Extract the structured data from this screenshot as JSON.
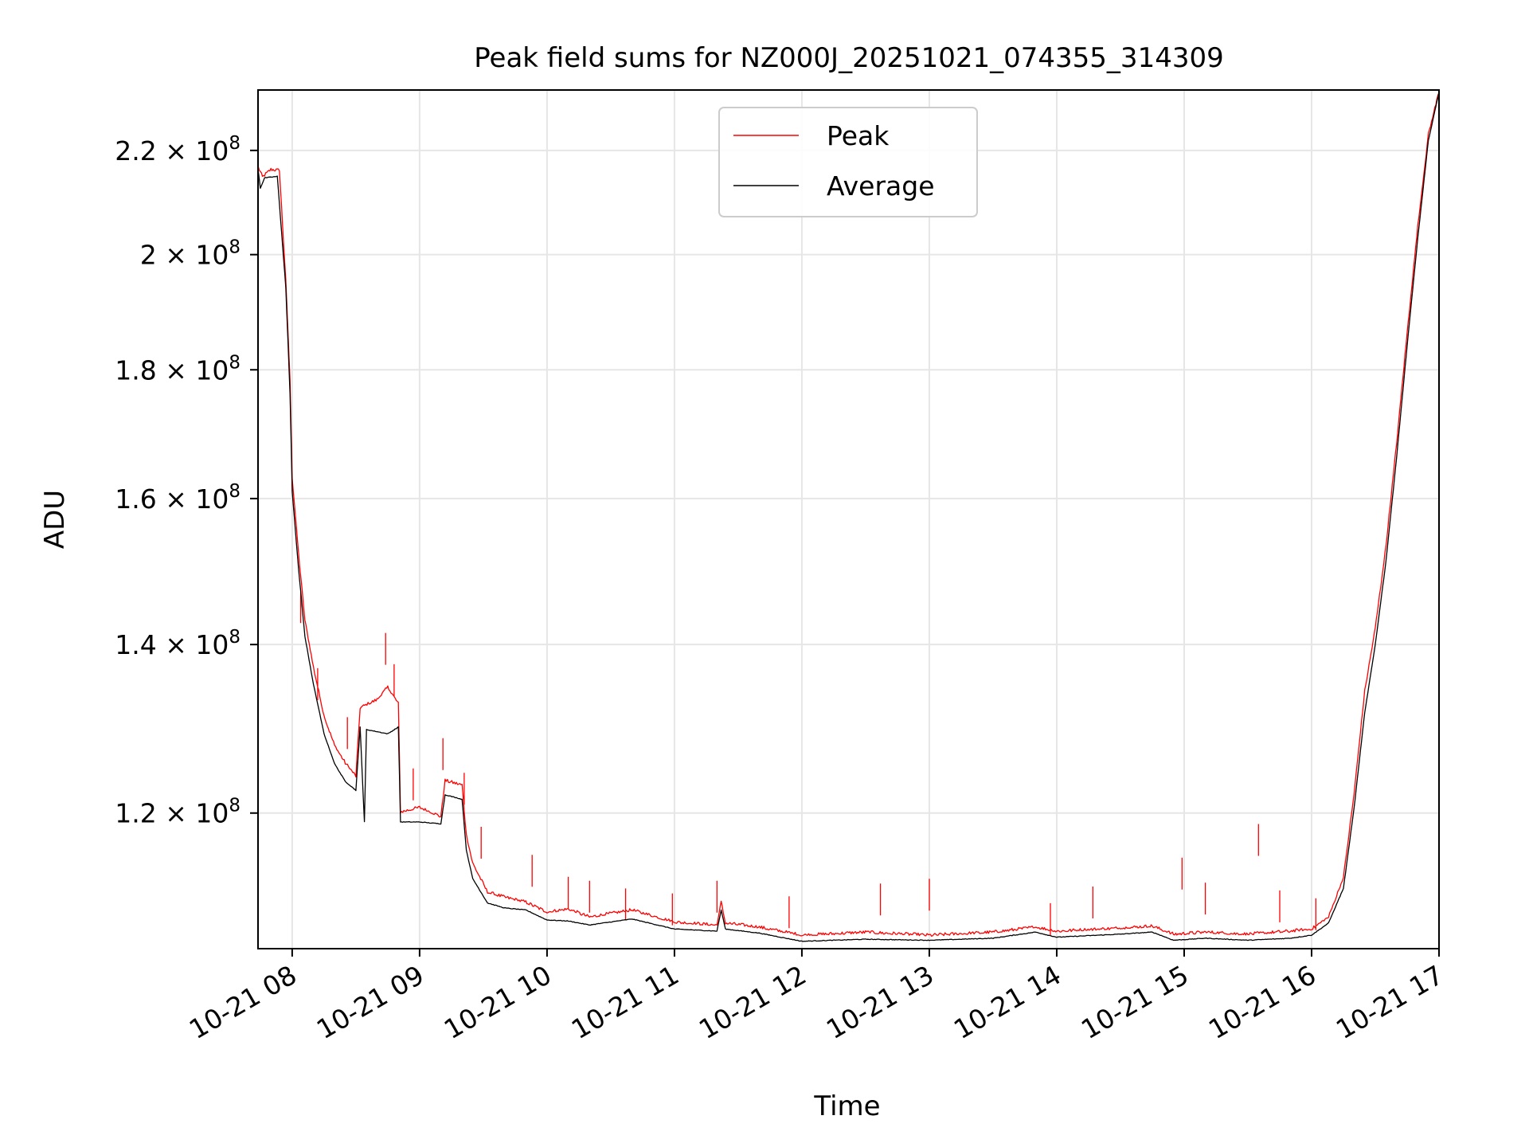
{
  "chart_data": {
    "type": "line",
    "title": "Peak field sums for NZ000J_20251021_074355_314309",
    "xlabel": "Time",
    "ylabel": "ADU",
    "yscale": "log",
    "grid": true,
    "legend_placement": "upper center",
    "xlim": [
      "2025-10-21 07:43:55",
      "2025-10-21 17:00:00"
    ],
    "ylim": [
      106000000,
      232500000
    ],
    "x_ticks": [
      {
        "value": "2025-10-21 08:00",
        "label": "10-21 08"
      },
      {
        "value": "2025-10-21 09:00",
        "label": "10-21 09"
      },
      {
        "value": "2025-10-21 10:00",
        "label": "10-21 10"
      },
      {
        "value": "2025-10-21 11:00",
        "label": "10-21 11"
      },
      {
        "value": "2025-10-21 12:00",
        "label": "10-21 12"
      },
      {
        "value": "2025-10-21 13:00",
        "label": "10-21 13"
      },
      {
        "value": "2025-10-21 14:00",
        "label": "10-21 14"
      },
      {
        "value": "2025-10-21 15:00",
        "label": "10-21 15"
      },
      {
        "value": "2025-10-21 16:00",
        "label": "10-21 16"
      },
      {
        "value": "2025-10-21 17:00",
        "label": "10-21 17"
      }
    ],
    "y_ticks": [
      {
        "value": 120000000,
        "mantissa": "1.2",
        "base": "10",
        "exp": "8"
      },
      {
        "value": 140000000,
        "mantissa": "1.4",
        "base": "10",
        "exp": "8"
      },
      {
        "value": 160000000,
        "mantissa": "1.6",
        "base": "10",
        "exp": "8"
      },
      {
        "value": 180000000,
        "mantissa": "1.8",
        "base": "10",
        "exp": "8"
      },
      {
        "value": 200000000,
        "mantissa": "2",
        "base": "10",
        "exp": "8"
      },
      {
        "value": 220000000,
        "mantissa": "2.2",
        "base": "10",
        "exp": "8"
      }
    ],
    "series": [
      {
        "name": "Peak",
        "color": "#ff0000",
        "points": [
          [
            "2025-10-21 07:44",
            216500000
          ],
          [
            "2025-10-21 07:46",
            214500000
          ],
          [
            "2025-10-21 07:50",
            216000000
          ],
          [
            "2025-10-21 07:54",
            215800000
          ],
          [
            "2025-10-21 07:57",
            195000000
          ],
          [
            "2025-10-21 07:59",
            178000000
          ],
          [
            "2025-10-21 08:00",
            163000000
          ],
          [
            "2025-10-21 08:03",
            152000000
          ],
          [
            "2025-10-21 08:06",
            143000000
          ],
          [
            "2025-10-21 08:10",
            137000000
          ],
          [
            "2025-10-21 08:15",
            131000000
          ],
          [
            "2025-10-21 08:20",
            127500000
          ],
          [
            "2025-10-21 08:25",
            125500000
          ],
          [
            "2025-10-21 08:30",
            124000000
          ],
          [
            "2025-10-21 08:32",
            132000000
          ],
          [
            "2025-10-21 08:40",
            133000000
          ],
          [
            "2025-10-21 08:45",
            134500000
          ],
          [
            "2025-10-21 08:50",
            132500000
          ],
          [
            "2025-10-21 08:51",
            120000000
          ],
          [
            "2025-10-21 09:00",
            120500000
          ],
          [
            "2025-10-21 09:10",
            119500000
          ],
          [
            "2025-10-21 09:12",
            123500000
          ],
          [
            "2025-10-21 09:20",
            123000000
          ],
          [
            "2025-10-21 09:22",
            117500000
          ],
          [
            "2025-10-21 09:25",
            114500000
          ],
          [
            "2025-10-21 09:32",
            111500000
          ],
          [
            "2025-10-21 09:40",
            111000000
          ],
          [
            "2025-10-21 09:50",
            110500000
          ],
          [
            "2025-10-21 10:00",
            109500000
          ],
          [
            "2025-10-21 10:10",
            109800000
          ],
          [
            "2025-10-21 10:20",
            109000000
          ],
          [
            "2025-10-21 10:40",
            109700000
          ],
          [
            "2025-10-21 11:00",
            108500000
          ],
          [
            "2025-10-21 11:20",
            108200000
          ],
          [
            "2025-10-21 11:22",
            110500000
          ],
          [
            "2025-10-21 11:24",
            108400000
          ],
          [
            "2025-10-21 11:40",
            108000000
          ],
          [
            "2025-10-21 12:00",
            107200000
          ],
          [
            "2025-10-21 12:30",
            107500000
          ],
          [
            "2025-10-21 13:00",
            107200000
          ],
          [
            "2025-10-21 13:30",
            107500000
          ],
          [
            "2025-10-21 13:50",
            108000000
          ],
          [
            "2025-10-21 14:00",
            107600000
          ],
          [
            "2025-10-21 14:30",
            107900000
          ],
          [
            "2025-10-21 14:45",
            108100000
          ],
          [
            "2025-10-21 14:55",
            107300000
          ],
          [
            "2025-10-21 15:10",
            107500000
          ],
          [
            "2025-10-21 15:30",
            107300000
          ],
          [
            "2025-10-21 15:50",
            107600000
          ],
          [
            "2025-10-21 16:00",
            107800000
          ],
          [
            "2025-10-21 16:08",
            109000000
          ],
          [
            "2025-10-21 16:15",
            113000000
          ],
          [
            "2025-10-21 16:20",
            122000000
          ],
          [
            "2025-10-21 16:25",
            134000000
          ],
          [
            "2025-10-21 16:30",
            142000000
          ],
          [
            "2025-10-21 16:35",
            153000000
          ],
          [
            "2025-10-21 16:40",
            168000000
          ],
          [
            "2025-10-21 16:45",
            186000000
          ],
          [
            "2025-10-21 16:50",
            205000000
          ],
          [
            "2025-10-21 16:55",
            223000000
          ],
          [
            "2025-10-21 17:00",
            232000000
          ]
        ],
        "spikes": [
          [
            "2025-10-21 08:04",
            147000000
          ],
          [
            "2025-10-21 08:12",
            137000000
          ],
          [
            "2025-10-21 08:26",
            131000000
          ],
          [
            "2025-10-21 08:44",
            141500000
          ],
          [
            "2025-10-21 08:48",
            137500000
          ],
          [
            "2025-10-21 08:57",
            125000000
          ],
          [
            "2025-10-21 09:11",
            128500000
          ],
          [
            "2025-10-21 09:21",
            124500000
          ],
          [
            "2025-10-21 09:29",
            118500000
          ],
          [
            "2025-10-21 09:53",
            115500000
          ],
          [
            "2025-10-21 10:10",
            113200000
          ],
          [
            "2025-10-21 10:20",
            112800000
          ],
          [
            "2025-10-21 10:37",
            112000000
          ],
          [
            "2025-10-21 10:59",
            111500000
          ],
          [
            "2025-10-21 11:20",
            112800000
          ],
          [
            "2025-10-21 11:54",
            111200000
          ],
          [
            "2025-10-21 12:37",
            112500000
          ],
          [
            "2025-10-21 13:00",
            113000000
          ],
          [
            "2025-10-21 13:57",
            110500000
          ],
          [
            "2025-10-21 14:17",
            112200000
          ],
          [
            "2025-10-21 14:59",
            115200000
          ],
          [
            "2025-10-21 15:10",
            112600000
          ],
          [
            "2025-10-21 15:35",
            118800000
          ],
          [
            "2025-10-21 15:45",
            111800000
          ],
          [
            "2025-10-21 16:02",
            111000000
          ]
        ]
      },
      {
        "name": "Average",
        "color": "#000000",
        "points": [
          [
            "2025-10-21 07:44",
            216000000
          ],
          [
            "2025-10-21 07:45",
            212500000
          ],
          [
            "2025-10-21 07:47",
            214500000
          ],
          [
            "2025-10-21 07:53",
            214800000
          ],
          [
            "2025-10-21 07:57",
            194000000
          ],
          [
            "2025-10-21 07:59",
            176000000
          ],
          [
            "2025-10-21 08:00",
            161000000
          ],
          [
            "2025-10-21 08:03",
            150000000
          ],
          [
            "2025-10-21 08:06",
            141000000
          ],
          [
            "2025-10-21 08:10",
            135000000
          ],
          [
            "2025-10-21 08:15",
            129000000
          ],
          [
            "2025-10-21 08:20",
            125500000
          ],
          [
            "2025-10-21 08:25",
            123500000
          ],
          [
            "2025-10-21 08:30",
            122500000
          ],
          [
            "2025-10-21 08:32",
            129800000
          ],
          [
            "2025-10-21 08:34",
            119000000
          ],
          [
            "2025-10-21 08:35",
            129500000
          ],
          [
            "2025-10-21 08:45",
            129000000
          ],
          [
            "2025-10-21 08:50",
            129800000
          ],
          [
            "2025-10-21 08:51",
            119000000
          ],
          [
            "2025-10-21 09:00",
            119000000
          ],
          [
            "2025-10-21 09:10",
            118800000
          ],
          [
            "2025-10-21 09:12",
            122000000
          ],
          [
            "2025-10-21 09:20",
            121500000
          ],
          [
            "2025-10-21 09:22",
            116000000
          ],
          [
            "2025-10-21 09:25",
            113000000
          ],
          [
            "2025-10-21 09:32",
            110500000
          ],
          [
            "2025-10-21 09:40",
            110000000
          ],
          [
            "2025-10-21 09:50",
            109800000
          ],
          [
            "2025-10-21 10:00",
            108800000
          ],
          [
            "2025-10-21 10:10",
            108700000
          ],
          [
            "2025-10-21 10:20",
            108300000
          ],
          [
            "2025-10-21 10:40",
            108900000
          ],
          [
            "2025-10-21 11:00",
            107900000
          ],
          [
            "2025-10-21 11:20",
            107700000
          ],
          [
            "2025-10-21 11:22",
            109800000
          ],
          [
            "2025-10-21 11:24",
            107900000
          ],
          [
            "2025-10-21 11:40",
            107500000
          ],
          [
            "2025-10-21 12:00",
            106700000
          ],
          [
            "2025-10-21 12:30",
            106900000
          ],
          [
            "2025-10-21 13:00",
            106800000
          ],
          [
            "2025-10-21 13:30",
            107000000
          ],
          [
            "2025-10-21 13:50",
            107600000
          ],
          [
            "2025-10-21 14:00",
            107100000
          ],
          [
            "2025-10-21 14:30",
            107400000
          ],
          [
            "2025-10-21 14:45",
            107600000
          ],
          [
            "2025-10-21 14:55",
            106800000
          ],
          [
            "2025-10-21 15:10",
            107000000
          ],
          [
            "2025-10-21 15:30",
            106800000
          ],
          [
            "2025-10-21 15:50",
            107000000
          ],
          [
            "2025-10-21 16:00",
            107300000
          ],
          [
            "2025-10-21 16:08",
            108500000
          ],
          [
            "2025-10-21 16:15",
            112000000
          ],
          [
            "2025-10-21 16:20",
            120500000
          ],
          [
            "2025-10-21 16:25",
            131500000
          ],
          [
            "2025-10-21 16:30",
            140000000
          ],
          [
            "2025-10-21 16:35",
            151000000
          ],
          [
            "2025-10-21 16:40",
            166000000
          ],
          [
            "2025-10-21 16:45",
            184000000
          ],
          [
            "2025-10-21 16:50",
            203000000
          ],
          [
            "2025-10-21 16:55",
            222000000
          ],
          [
            "2025-10-21 17:00",
            232000000
          ]
        ]
      }
    ]
  }
}
